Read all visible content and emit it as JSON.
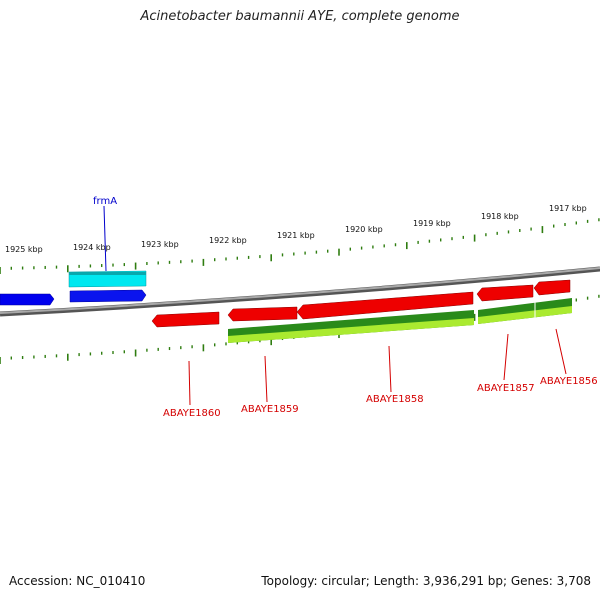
{
  "title": "Acinetobacter baumannii AYE, complete genome",
  "footer": {
    "accession": "Accession: NC_010410",
    "summary": "Topology: circular; Length: 3,936,291 bp; Genes: 3,708"
  },
  "colors": {
    "backbone": "#7a7a7a",
    "tick": "#2f7d10",
    "forward_cds": "#0000ff",
    "forward_gene": "#00e5ee",
    "reverse_cds": "#ff0000",
    "reverse_gene_dark": "#1e7d16",
    "reverse_gene_light": "#a8e82c",
    "forward_label": "#0000cc",
    "reverse_label": "#d40000"
  },
  "ruler_labels": [
    "1925 kbp",
    "1924 kbp",
    "1923 kbp",
    "1922 kbp",
    "1921 kbp",
    "1920 kbp",
    "1919 kbp",
    "1918 kbp",
    "1917 kbp"
  ],
  "gene_labels": [
    {
      "text": "frmA",
      "strand": "forward"
    },
    {
      "text": "ABAYE1860",
      "strand": "reverse"
    },
    {
      "text": "ABAYE1859",
      "strand": "reverse"
    },
    {
      "text": "ABAYE1858",
      "strand": "reverse"
    },
    {
      "text": "ABAYE1857",
      "strand": "reverse"
    },
    {
      "text": "ABAYE1856",
      "strand": "reverse"
    }
  ]
}
